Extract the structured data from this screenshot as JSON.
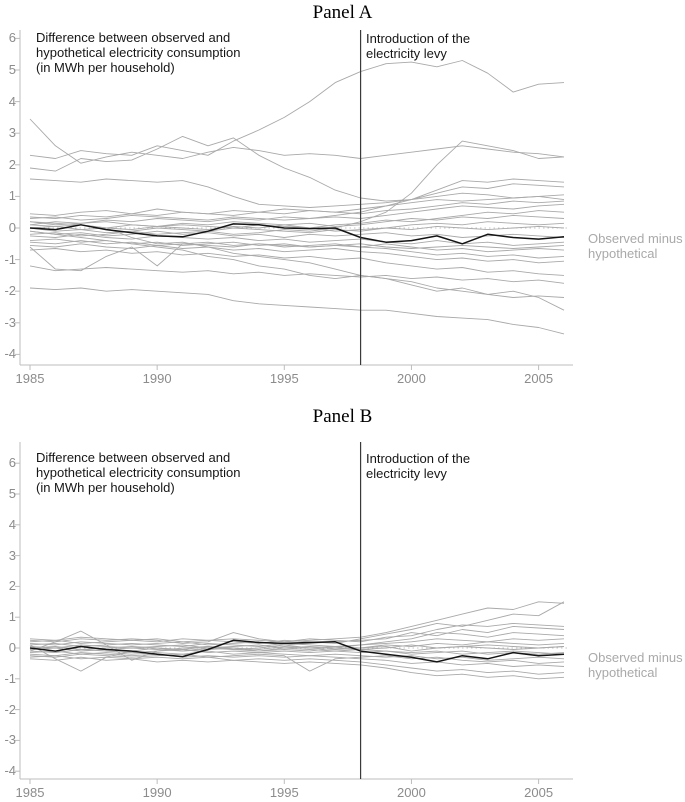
{
  "chart_data": [
    {
      "type": "line",
      "panel_title": "Panel A",
      "x": [
        1985,
        1986,
        1987,
        1988,
        1989,
        1990,
        1991,
        1992,
        1993,
        1994,
        1995,
        1996,
        1997,
        1998,
        1999,
        2000,
        2001,
        2002,
        2003,
        2004,
        2005,
        2006
      ],
      "x_ticks": [
        "1985",
        "1990",
        "1995",
        "2000",
        "2005"
      ],
      "y_ticks": [
        "6",
        "5",
        "4",
        "3",
        "2",
        "1",
        "0",
        "-1",
        "-2",
        "-3",
        "-4"
      ],
      "xlim": [
        1985,
        2006.4
      ],
      "ylim": [
        -4.3,
        6.3
      ],
      "grid": false,
      "levy_year": 1998,
      "zero_reference": 0,
      "annotation_note": [
        "Difference between observed and",
        "hypothetical electricity consumption",
        "(in MWh per household)"
      ],
      "annotation_levy": [
        "Introduction of the",
        "electricity levy"
      ],
      "right_label": [
        "Observed minus",
        "hypothetical"
      ],
      "colors": {
        "gray_series": "#a9a9a9",
        "highlight": "#141414",
        "axis": "#bdbdbd",
        "tick_label": "#8c8c8c",
        "levy_line": "#3a3a3a",
        "zero_dotted": "#c4c4c4",
        "right_label": "#a9a9a9"
      },
      "highlight_series": {
        "name": "Observed minus hypothetical",
        "values": [
          0.0,
          -0.05,
          0.1,
          -0.05,
          -0.15,
          -0.25,
          -0.28,
          -0.1,
          0.13,
          0.1,
          0.0,
          -0.02,
          0.0,
          -0.3,
          -0.45,
          -0.4,
          -0.25,
          -0.5,
          -0.2,
          -0.3,
          -0.35,
          -0.28
        ]
      },
      "gray_series": [
        [
          2.3,
          2.2,
          2.45,
          2.35,
          2.3,
          2.6,
          2.45,
          2.3,
          2.75,
          3.1,
          3.5,
          4.0,
          4.6,
          4.95,
          5.2,
          5.25,
          5.1,
          5.3,
          4.9,
          4.3,
          4.55,
          4.6
        ],
        [
          3.45,
          2.6,
          2.05,
          2.25,
          2.4,
          2.3,
          2.2,
          2.4,
          2.55,
          2.45,
          2.3,
          2.35,
          2.3,
          2.2,
          2.3,
          2.4,
          2.5,
          2.6,
          2.5,
          2.4,
          2.35,
          2.25
        ],
        [
          1.9,
          1.8,
          2.2,
          2.1,
          2.15,
          2.5,
          2.9,
          2.6,
          2.85,
          2.3,
          1.9,
          1.6,
          1.2,
          0.95,
          0.85,
          0.9,
          1.1,
          1.3,
          1.25,
          1.4,
          1.35,
          1.3
        ],
        [
          1.55,
          1.5,
          1.45,
          1.55,
          1.5,
          1.45,
          1.5,
          1.3,
          1.0,
          0.75,
          0.7,
          0.65,
          0.7,
          0.75,
          0.8,
          0.9,
          1.0,
          1.1,
          1.05,
          0.95,
          1.0,
          1.05
        ],
        [
          0.45,
          0.4,
          0.5,
          0.55,
          0.45,
          0.6,
          0.5,
          0.45,
          0.55,
          0.5,
          0.6,
          0.55,
          0.5,
          0.6,
          0.7,
          0.8,
          0.9,
          0.85,
          0.9,
          0.95,
          1.0,
          0.9
        ],
        [
          0.3,
          0.35,
          0.25,
          0.3,
          0.4,
          0.35,
          0.3,
          0.25,
          0.35,
          0.3,
          0.25,
          0.3,
          0.35,
          0.3,
          0.4,
          0.5,
          0.6,
          0.7,
          0.65,
          0.6,
          0.7,
          0.75
        ],
        [
          0.2,
          0.1,
          0.15,
          0.2,
          0.1,
          0.05,
          0.15,
          0.1,
          0.2,
          0.15,
          0.1,
          0.15,
          0.05,
          0.1,
          0.2,
          0.3,
          0.25,
          0.35,
          0.3,
          0.4,
          0.35,
          0.3
        ],
        [
          0.1,
          0.05,
          -0.05,
          0.0,
          0.1,
          0.05,
          0.0,
          -0.05,
          0.05,
          0.0,
          0.1,
          0.0,
          -0.1,
          -0.05,
          0.0,
          0.1,
          0.15,
          0.1,
          0.2,
          0.15,
          0.1,
          0.15
        ],
        [
          0.0,
          -0.1,
          -0.05,
          -0.15,
          -0.1,
          0.0,
          -0.05,
          -0.1,
          0.0,
          -0.05,
          -0.1,
          -0.15,
          -0.05,
          -0.1,
          0.0,
          -0.05,
          0.05,
          0.0,
          -0.05,
          0.0,
          0.05,
          0.0
        ],
        [
          -0.1,
          -0.2,
          -0.15,
          -0.25,
          -0.2,
          -0.1,
          -0.2,
          -0.15,
          -0.25,
          -0.2,
          -0.3,
          -0.2,
          -0.25,
          -0.2,
          -0.15,
          -0.25,
          -0.2,
          -0.3,
          -0.25,
          -0.2,
          -0.25,
          -0.3
        ],
        [
          -0.25,
          -0.3,
          -0.2,
          -0.3,
          -0.35,
          -0.25,
          -0.3,
          -0.35,
          -0.3,
          -0.4,
          -0.35,
          -0.45,
          -0.4,
          -0.35,
          -0.45,
          -0.5,
          -0.4,
          -0.5,
          -0.45,
          -0.55,
          -0.5,
          -0.45
        ],
        [
          -0.4,
          -0.35,
          -0.45,
          -0.4,
          -0.5,
          -0.45,
          -0.55,
          -0.5,
          -0.45,
          -0.55,
          -0.5,
          -0.6,
          -0.55,
          -0.6,
          -0.5,
          -0.6,
          -0.7,
          -0.65,
          -0.75,
          -0.7,
          -0.65,
          -0.7
        ],
        [
          -0.55,
          -0.6,
          -0.5,
          -0.6,
          -0.65,
          -0.55,
          -0.65,
          -0.6,
          -0.7,
          -0.65,
          -0.75,
          -0.7,
          -0.65,
          -0.75,
          -0.8,
          -0.9,
          -1.0,
          -0.95,
          -1.05,
          -1.0,
          -1.1,
          -1.05
        ],
        [
          -0.7,
          -0.65,
          -0.75,
          -0.7,
          -0.8,
          -0.75,
          -0.85,
          -0.8,
          -0.9,
          -0.85,
          -0.95,
          -0.9,
          -1.0,
          -0.95,
          -1.1,
          -1.2,
          -1.3,
          -1.25,
          -1.4,
          -1.35,
          -1.45,
          -1.5
        ],
        [
          -0.6,
          -1.3,
          -1.35,
          -0.9,
          -0.6,
          -1.2,
          -0.5,
          -0.55,
          -0.6,
          -0.5,
          -0.55,
          -0.6,
          -0.55,
          -0.5,
          -0.6,
          -0.65,
          -0.6,
          -0.55,
          -0.6,
          -0.65,
          -0.6,
          -0.55
        ],
        [
          0.2,
          0.15,
          0.1,
          0.0,
          -0.3,
          -0.5,
          -0.45,
          -0.6,
          -0.8,
          -0.9,
          -1.0,
          -1.1,
          -1.3,
          -1.5,
          -1.6,
          -1.7,
          -1.9,
          -2.0,
          -2.1,
          -2.2,
          -2.15,
          -2.2
        ],
        [
          -0.1,
          -0.2,
          -0.3,
          -0.4,
          -0.5,
          -0.6,
          -0.7,
          -0.9,
          -1.0,
          -1.2,
          -1.3,
          -1.5,
          -1.6,
          -1.5,
          -1.6,
          -1.8,
          -2.0,
          -1.9,
          -2.1,
          -2.0,
          -2.2,
          -2.6
        ],
        [
          -1.9,
          -1.95,
          -1.9,
          -2.0,
          -1.95,
          -2.0,
          -2.05,
          -2.1,
          -2.3,
          -2.4,
          -2.45,
          -2.5,
          -2.55,
          -2.6,
          -2.6,
          -2.7,
          -2.8,
          -2.85,
          -2.9,
          -3.05,
          -3.15,
          -3.35
        ],
        [
          -1.2,
          -1.35,
          -1.3,
          -1.25,
          -1.3,
          -1.35,
          -1.4,
          -1.35,
          -1.45,
          -1.4,
          -1.5,
          -1.45,
          -1.5,
          -1.55,
          -1.5,
          -1.6,
          -1.55,
          -1.65,
          -1.6,
          -1.7,
          -1.65,
          -1.75
        ],
        [
          0.1,
          0.2,
          0.15,
          0.25,
          0.2,
          0.3,
          0.25,
          0.2,
          0.3,
          0.25,
          0.35,
          0.3,
          0.4,
          0.5,
          0.7,
          0.9,
          1.2,
          1.5,
          1.45,
          1.55,
          1.5,
          1.45
        ],
        [
          -0.2,
          -0.15,
          -0.25,
          -0.2,
          -0.1,
          -0.2,
          -0.15,
          -0.1,
          -0.2,
          -0.15,
          -0.05,
          -0.1,
          0.0,
          0.2,
          0.5,
          1.1,
          2.0,
          2.75,
          2.6,
          2.45,
          2.2,
          2.25
        ],
        [
          0.35,
          0.3,
          0.4,
          0.35,
          0.45,
          0.4,
          0.5,
          0.45,
          0.4,
          0.5,
          0.45,
          0.55,
          0.5,
          0.45,
          0.55,
          0.6,
          0.7,
          0.8,
          0.75,
          0.85,
          0.8,
          0.85
        ],
        [
          -0.45,
          -0.5,
          -0.4,
          -0.5,
          -0.45,
          -0.55,
          -0.5,
          -0.45,
          -0.55,
          -0.5,
          -0.6,
          -0.55,
          -0.5,
          -0.6,
          -0.65,
          -0.75,
          -0.85,
          -0.8,
          -0.9,
          -0.85,
          -0.95,
          -0.9
        ],
        [
          0.0,
          0.05,
          0.1,
          0.0,
          -0.05,
          0.05,
          0.1,
          0.05,
          0.0,
          0.1,
          0.05,
          0.0,
          0.1,
          0.15,
          0.25,
          0.2,
          0.3,
          0.4,
          0.5,
          0.45,
          0.55,
          0.5
        ]
      ]
    },
    {
      "type": "line",
      "panel_title": "Panel B",
      "x": [
        1985,
        1986,
        1987,
        1988,
        1989,
        1990,
        1991,
        1992,
        1993,
        1994,
        1995,
        1996,
        1997,
        1998,
        1999,
        2000,
        2001,
        2002,
        2003,
        2004,
        2005,
        2006
      ],
      "x_ticks": [
        "1985",
        "1990",
        "1995",
        "2000",
        "2005"
      ],
      "y_ticks": [
        "6",
        "5",
        "4",
        "3",
        "2",
        "1",
        "0",
        "-1",
        "-2",
        "-3",
        "-4"
      ],
      "xlim": [
        1985,
        2006.4
      ],
      "ylim": [
        -4.3,
        6.5
      ],
      "grid": false,
      "levy_year": 1998,
      "zero_reference": 0,
      "annotation_note": [
        "Difference between observed and",
        "hypothetical electricity consumption",
        "(in MWh per household)"
      ],
      "annotation_levy": [
        "Introduction of the",
        "electricity levy"
      ],
      "right_label": [
        "Observed minus",
        "hypothetical"
      ],
      "colors": {
        "gray_series": "#a9a9a9",
        "highlight": "#141414",
        "axis": "#bdbdbd",
        "tick_label": "#8c8c8c",
        "levy_line": "#3a3a3a",
        "zero_dotted": "#c4c4c4",
        "right_label": "#a9a9a9"
      },
      "highlight_series": {
        "name": "Observed minus hypothetical",
        "values": [
          0.0,
          -0.1,
          0.05,
          -0.05,
          -0.1,
          -0.2,
          -0.28,
          -0.05,
          0.25,
          0.18,
          0.15,
          0.18,
          0.2,
          -0.1,
          -0.2,
          -0.3,
          -0.45,
          -0.25,
          -0.35,
          -0.15,
          -0.25,
          -0.2
        ]
      },
      "gray_series": [
        [
          0.3,
          0.25,
          0.35,
          0.3,
          0.25,
          0.3,
          0.2,
          0.25,
          0.3,
          0.25,
          0.2,
          0.25,
          0.3,
          0.35,
          0.5,
          0.7,
          0.9,
          1.1,
          1.3,
          1.25,
          1.5,
          1.45
        ],
        [
          0.2,
          0.25,
          0.15,
          0.2,
          0.25,
          0.2,
          0.3,
          0.25,
          0.2,
          0.15,
          0.25,
          0.2,
          0.15,
          0.3,
          0.45,
          0.6,
          0.8,
          0.7,
          0.9,
          1.1,
          1.05,
          1.5
        ],
        [
          0.15,
          0.1,
          0.2,
          0.15,
          0.1,
          0.15,
          0.2,
          0.1,
          0.15,
          0.2,
          0.1,
          0.15,
          0.2,
          0.25,
          0.3,
          0.5,
          0.4,
          0.6,
          0.5,
          0.7,
          0.65,
          0.6
        ],
        [
          0.1,
          0.15,
          0.05,
          0.1,
          0.15,
          0.1,
          0.05,
          0.15,
          0.1,
          0.05,
          0.15,
          0.1,
          0.05,
          0.1,
          0.2,
          0.3,
          0.5,
          0.45,
          0.35,
          0.5,
          0.45,
          0.4
        ],
        [
          0.05,
          0.0,
          0.1,
          0.05,
          0.0,
          0.05,
          0.1,
          0.0,
          0.05,
          0.1,
          0.0,
          0.05,
          0.0,
          0.1,
          0.15,
          0.2,
          0.3,
          0.25,
          0.2,
          0.3,
          0.25,
          0.3
        ],
        [
          0.0,
          0.05,
          -0.05,
          0.0,
          0.05,
          0.0,
          -0.05,
          0.05,
          0.0,
          -0.05,
          0.05,
          0.0,
          0.05,
          0.0,
          0.1,
          0.05,
          0.15,
          0.1,
          0.2,
          0.15,
          0.1,
          0.15
        ],
        [
          -0.05,
          0.0,
          -0.1,
          -0.05,
          0.0,
          -0.05,
          -0.1,
          0.0,
          -0.05,
          -0.1,
          0.0,
          -0.05,
          -0.1,
          -0.05,
          0.0,
          0.1,
          0.0,
          0.05,
          0.1,
          0.05,
          0.0,
          0.05
        ],
        [
          -0.1,
          -0.15,
          -0.05,
          -0.1,
          -0.15,
          -0.1,
          -0.05,
          -0.15,
          -0.1,
          -0.15,
          -0.1,
          -0.15,
          -0.1,
          -0.15,
          -0.1,
          -0.2,
          -0.15,
          -0.1,
          -0.2,
          -0.15,
          -0.2,
          -0.15
        ],
        [
          -0.15,
          -0.1,
          -0.2,
          -0.15,
          -0.2,
          -0.15,
          -0.2,
          -0.1,
          -0.2,
          -0.15,
          -0.2,
          -0.25,
          -0.2,
          -0.25,
          -0.3,
          -0.25,
          -0.35,
          -0.3,
          -0.4,
          -0.35,
          -0.3,
          -0.35
        ],
        [
          -0.2,
          -0.25,
          -0.15,
          -0.2,
          -0.25,
          -0.2,
          -0.3,
          -0.25,
          -0.3,
          -0.25,
          -0.3,
          -0.25,
          -0.3,
          -0.35,
          -0.4,
          -0.5,
          -0.45,
          -0.55,
          -0.5,
          -0.6,
          -0.55,
          -0.6
        ],
        [
          -0.3,
          -0.25,
          -0.35,
          -0.3,
          -0.35,
          -0.3,
          -0.35,
          -0.3,
          -0.4,
          -0.35,
          -0.4,
          -0.35,
          -0.4,
          -0.45,
          -0.55,
          -0.65,
          -0.75,
          -0.7,
          -0.8,
          -0.75,
          -0.85,
          -0.8
        ],
        [
          -0.35,
          -0.4,
          -0.3,
          -0.4,
          -0.35,
          -0.45,
          -0.4,
          -0.45,
          -0.4,
          -0.45,
          -0.5,
          -0.45,
          -0.5,
          -0.55,
          -0.65,
          -0.8,
          -0.9,
          -0.85,
          -0.95,
          -0.9,
          -1.0,
          -0.95
        ],
        [
          -0.1,
          0.2,
          0.55,
          0.1,
          -0.4,
          -0.1,
          0.0,
          0.05,
          -0.05,
          0.0,
          0.1,
          0.0,
          -0.05,
          0.0,
          0.05,
          -0.1,
          0.0,
          0.05,
          0.0,
          -0.05,
          0.0,
          0.05
        ],
        [
          0.1,
          -0.35,
          -0.75,
          -0.3,
          -0.1,
          0.0,
          -0.1,
          -0.05,
          0.0,
          -0.1,
          -0.05,
          -0.1,
          0.0,
          -0.05,
          -0.1,
          -0.15,
          -0.1,
          -0.2,
          -0.15,
          -0.1,
          -0.15,
          -0.2
        ],
        [
          0.25,
          0.2,
          0.3,
          0.25,
          0.3,
          0.25,
          0.15,
          0.2,
          0.5,
          0.3,
          0.2,
          0.3,
          0.25,
          0.2,
          0.35,
          0.4,
          0.6,
          0.75,
          0.7,
          0.8,
          0.75,
          0.7
        ],
        [
          -0.25,
          -0.3,
          -0.2,
          -0.25,
          -0.3,
          -0.25,
          -0.2,
          -0.3,
          -0.25,
          -0.2,
          -0.25,
          -0.75,
          -0.35,
          -0.3,
          -0.25,
          -0.35,
          -0.3,
          -0.4,
          -0.45,
          -0.4,
          -0.5,
          -0.45
        ]
      ]
    }
  ]
}
